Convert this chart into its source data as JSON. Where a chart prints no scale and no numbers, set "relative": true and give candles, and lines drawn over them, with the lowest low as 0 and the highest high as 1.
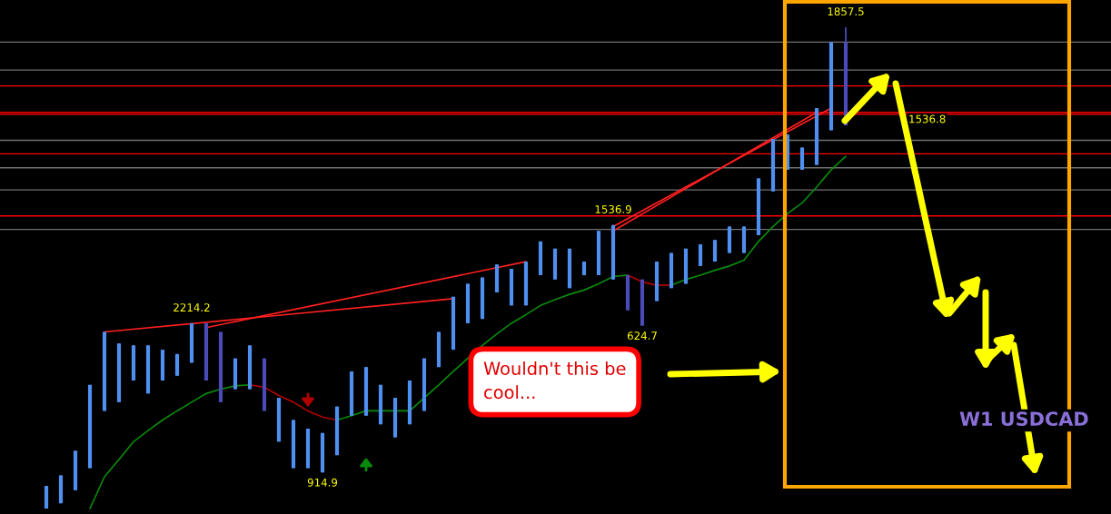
{
  "chart_data": {
    "type": "candlestick",
    "relative": true,
    "categories": [
      null,
      null,
      null,
      null,
      null,
      null,
      null,
      null,
      null,
      null,
      null,
      null,
      null,
      null,
      null,
      null,
      null,
      null,
      null,
      null,
      null,
      null,
      null,
      null,
      null,
      null,
      null,
      null,
      null,
      null,
      null,
      null,
      null,
      null,
      null,
      null,
      null,
      null,
      null,
      null,
      null,
      null,
      null,
      null,
      null,
      null,
      null,
      null,
      null,
      null,
      null,
      null,
      null,
      null,
      null,
      null
    ],
    "ohlc": [
      [
        0,
        0.047,
        0,
        0.047
      ],
      [
        0.011,
        0.069,
        0.011,
        0.069
      ],
      [
        0.038,
        0.12,
        0.038,
        0.12
      ],
      [
        0.084,
        0.257,
        0.084,
        0.257
      ],
      [
        0.203,
        0.367,
        0.203,
        0.367
      ],
      [
        0.221,
        0.343,
        0.221,
        0.343
      ],
      [
        0.266,
        0.339,
        0.266,
        0.339
      ],
      [
        0.239,
        0.339,
        0.239,
        0.339
      ],
      [
        0.266,
        0.33,
        0.266,
        0.33
      ],
      [
        0.276,
        0.321,
        0.276,
        0.321
      ],
      [
        0.303,
        0.385,
        0.303,
        0.385
      ],
      [
        0.385,
        0.385,
        0.266,
        0.266
      ],
      [
        0.367,
        0.367,
        0.221,
        0.221
      ],
      [
        0.248,
        0.312,
        0.248,
        0.312
      ],
      [
        0.248,
        0.339,
        0.248,
        0.339
      ],
      [
        0.312,
        0.312,
        0.203,
        0.203
      ],
      [
        0.139,
        0.23,
        0.139,
        0.23
      ],
      [
        0.084,
        0.184,
        0.084,
        0.184
      ],
      [
        0.084,
        0.166,
        0.084,
        0.166
      ],
      [
        0.075,
        0.157,
        0.075,
        0.157
      ],
      [
        0.111,
        0.212,
        0.111,
        0.212
      ],
      [
        0.193,
        0.285,
        0.193,
        0.285
      ],
      [
        0.193,
        0.294,
        0.193,
        0.294
      ],
      [
        0.175,
        0.257,
        0.175,
        0.257
      ],
      [
        0.148,
        0.23,
        0.148,
        0.23
      ],
      [
        0.175,
        0.266,
        0.175,
        0.266
      ],
      [
        0.203,
        0.312,
        0.203,
        0.312
      ],
      [
        0.294,
        0.367,
        0.294,
        0.367
      ],
      [
        0.33,
        0.44,
        0.33,
        0.44
      ],
      [
        0.385,
        0.467,
        0.385,
        0.467
      ],
      [
        0.394,
        0.48,
        0.394,
        0.48
      ],
      [
        0.449,
        0.507,
        0.449,
        0.507
      ],
      [
        0.422,
        0.498,
        0.422,
        0.498
      ],
      [
        0.422,
        0.513,
        0.422,
        0.513
      ],
      [
        0.485,
        0.555,
        0.485,
        0.555
      ],
      [
        0.476,
        0.54,
        0.476,
        0.54
      ],
      [
        0.458,
        0.54,
        0.458,
        0.54
      ],
      [
        0.485,
        0.513,
        0.485,
        0.513
      ],
      [
        0.485,
        0.577,
        0.485,
        0.577
      ],
      [
        0.476,
        0.589,
        0.476,
        0.589
      ],
      [
        0.485,
        0.485,
        0.412,
        0.412
      ],
      [
        0.476,
        0.476,
        0.38,
        0.38
      ],
      [
        0.431,
        0.513,
        0.431,
        0.513
      ],
      [
        0.458,
        0.531,
        0.458,
        0.531
      ],
      [
        0.467,
        0.54,
        0.467,
        0.54
      ],
      [
        0.504,
        0.549,
        0.504,
        0.549
      ],
      [
        0.513,
        0.558,
        0.513,
        0.558
      ],
      [
        0.531,
        0.586,
        0.531,
        0.586
      ],
      [
        0.531,
        0.586,
        0.531,
        0.586
      ],
      [
        0.568,
        0.686,
        0.568,
        0.686
      ],
      [
        0.659,
        0.768,
        0.659,
        0.768
      ],
      [
        0.704,
        0.777,
        0.704,
        0.777
      ],
      [
        0.704,
        0.75,
        0.704,
        0.75
      ],
      [
        0.714,
        0.832,
        0.714,
        0.832
      ],
      [
        0.786,
        0.969,
        0.786,
        0.969
      ],
      [
        0.969,
        1.0,
        0.796,
        0.796
      ]
    ],
    "colors": [
      "#4f8ff0",
      "#4f8ff0",
      "#4f8ff0",
      "#4f8ff0",
      "#4f8ff0",
      "#4f8ff0",
      "#4f8ff0",
      "#4f8ff0",
      "#4f8ff0",
      "#4f8ff0",
      "#4f8ff0",
      "#4a4ab8",
      "#4a4ab8",
      "#4f8ff0",
      "#4f8ff0",
      "#4a4ab8",
      "#4f8ff0",
      "#4f8ff0",
      "#4f8ff0",
      "#4f8ff0",
      "#4f8ff0",
      "#4f8ff0",
      "#4f8ff0",
      "#4f8ff0",
      "#4f8ff0",
      "#4f8ff0",
      "#4f8ff0",
      "#4f8ff0",
      "#4f8ff0",
      "#4f8ff0",
      "#4f8ff0",
      "#4f8ff0",
      "#4f8ff0",
      "#4f8ff0",
      "#4f8ff0",
      "#4f8ff0",
      "#4f8ff0",
      "#4f8ff0",
      "#4f8ff0",
      "#4f8ff0",
      "#4a4ab8",
      "#4a4ab8",
      "#4f8ff0",
      "#4f8ff0",
      "#4f8ff0",
      "#4f8ff0",
      "#4f8ff0",
      "#4f8ff0",
      "#4f8ff0",
      "#4f8ff0",
      "#4f8ff0",
      "#4f8ff0",
      "#4f8ff0",
      "#4f8ff0",
      "#4f8ff0",
      "#4a4ab8"
    ],
    "series": [
      {
        "type": "line",
        "color": "#0a8a0a",
        "values": [
          null,
          null,
          null,
          0.0,
          0.066,
          0.102,
          0.139,
          0.162,
          0.184,
          0.203,
          0.221,
          0.239,
          0.248,
          0.255,
          0.257,
          null,
          null,
          null,
          null,
          null,
          null,
          null,
          null,
          null,
          null,
          null,
          null,
          null,
          null,
          null,
          null,
          null,
          null,
          null,
          null,
          null,
          null,
          null,
          null,
          null,
          null,
          null,
          null,
          null,
          null,
          null,
          null,
          null,
          null,
          null,
          null,
          null,
          null,
          null,
          null,
          null
        ]
      },
      {
        "type": "line",
        "color": "#0a8a0a",
        "values": [
          null,
          null,
          null,
          null,
          null,
          null,
          null,
          null,
          null,
          null,
          null,
          null,
          null,
          null,
          null,
          null,
          null,
          null,
          null,
          null,
          0.184,
          0.193,
          0.203,
          0.203,
          0.203,
          0.203,
          0.23,
          0.257,
          0.285,
          0.312,
          0.339,
          0.363,
          0.385,
          0.403,
          0.422,
          0.434,
          0.445,
          0.454,
          0.467,
          0.482,
          0.485,
          null,
          null,
          null,
          null,
          null,
          null,
          null,
          null,
          null,
          null,
          null,
          null,
          null,
          null,
          null
        ]
      },
      {
        "type": "line",
        "color": "#0a8a0a",
        "values": [
          null,
          null,
          null,
          null,
          null,
          null,
          null,
          null,
          null,
          null,
          null,
          null,
          null,
          null,
          null,
          null,
          null,
          null,
          null,
          null,
          null,
          null,
          null,
          null,
          null,
          null,
          null,
          null,
          null,
          null,
          null,
          null,
          null,
          null,
          null,
          null,
          null,
          null,
          null,
          null,
          null,
          null,
          null,
          0.464,
          0.476,
          0.485,
          0.495,
          0.504,
          0.516,
          0.555,
          0.586,
          0.613,
          0.635,
          0.668,
          0.704,
          0.732
        ]
      },
      {
        "type": "line",
        "color": "#b00000",
        "values": [
          null,
          null,
          null,
          null,
          null,
          null,
          null,
          null,
          null,
          null,
          null,
          null,
          null,
          null,
          0.257,
          0.252,
          0.235,
          0.221,
          0.203,
          0.19,
          0.184,
          null,
          null,
          null,
          null,
          null,
          null,
          null,
          null,
          null,
          null,
          null,
          null,
          null,
          null,
          null,
          null,
          null,
          null,
          null,
          null,
          null,
          null,
          null,
          null,
          null,
          null,
          null,
          null,
          null,
          null,
          null,
          null,
          null,
          null,
          null
        ]
      },
      {
        "type": "line",
        "color": "#b00000",
        "values": [
          null,
          null,
          null,
          null,
          null,
          null,
          null,
          null,
          null,
          null,
          null,
          null,
          null,
          null,
          null,
          null,
          null,
          null,
          null,
          null,
          null,
          null,
          null,
          null,
          null,
          null,
          null,
          null,
          null,
          null,
          null,
          null,
          null,
          null,
          null,
          null,
          null,
          null,
          null,
          null,
          0.485,
          0.471,
          0.464,
          0.464,
          null,
          null,
          null,
          null,
          null,
          null,
          null,
          null,
          null,
          null,
          null,
          null
        ]
      },
      {
        "type": "line",
        "color": "#ff2020",
        "values": [
          null,
          null,
          null,
          null,
          0.367,
          null,
          null,
          null,
          null,
          null,
          null,
          null,
          null,
          null,
          null,
          null,
          null,
          null,
          null,
          null,
          null,
          null,
          null,
          null,
          null,
          null,
          null,
          null,
          0.436,
          null,
          null,
          null,
          null,
          null,
          null,
          null,
          null,
          null,
          null,
          null,
          null,
          null,
          null,
          null,
          null,
          null,
          null,
          null,
          null,
          null,
          null,
          null,
          null,
          null,
          null,
          null
        ]
      },
      {
        "type": "line",
        "color": "#ff2020",
        "values": [
          null,
          null,
          null,
          null,
          null,
          null,
          null,
          null,
          null,
          null,
          null,
          0.376,
          null,
          null,
          null,
          null,
          null,
          null,
          null,
          null,
          null,
          null,
          null,
          null,
          null,
          null,
          null,
          null,
          null,
          null,
          null,
          null,
          null,
          0.513,
          null,
          null,
          null,
          null,
          null,
          null,
          null,
          null,
          null,
          null,
          null,
          null,
          null,
          null,
          null,
          null,
          null,
          null,
          null,
          null,
          null,
          null
        ]
      },
      {
        "type": "line",
        "color": "#ff2020",
        "values": [
          null,
          null,
          null,
          null,
          null,
          null,
          null,
          null,
          null,
          null,
          null,
          null,
          null,
          null,
          null,
          null,
          null,
          null,
          null,
          null,
          null,
          null,
          null,
          null,
          null,
          null,
          null,
          null,
          null,
          null,
          null,
          null,
          null,
          null,
          null,
          null,
          null,
          null,
          null,
          0.577,
          null,
          null,
          null,
          null,
          null,
          null,
          null,
          null,
          null,
          null,
          null,
          null,
          null,
          0.823,
          null,
          null
        ]
      },
      {
        "type": "line",
        "color": "#ff2020",
        "values": [
          null,
          null,
          null,
          null,
          null,
          null,
          null,
          null,
          null,
          null,
          null,
          null,
          null,
          null,
          null,
          null,
          null,
          null,
          null,
          null,
          null,
          null,
          null,
          null,
          null,
          null,
          null,
          null,
          null,
          null,
          null,
          null,
          null,
          null,
          null,
          null,
          null,
          null,
          null,
          0.586,
          null,
          null,
          null,
          null,
          null,
          null,
          null,
          null,
          null,
          null,
          null,
          null,
          null,
          null,
          0.832,
          null
        ]
      }
    ],
    "ref_lines": [
      {
        "axis": "y",
        "value": 0.969,
        "color": "#707070"
      },
      {
        "axis": "y",
        "value": 0.911,
        "color": "#707070"
      },
      {
        "axis": "y",
        "value": 0.878,
        "color": "#ff0000"
      },
      {
        "axis": "y",
        "value": 0.823,
        "color": "#ff0000"
      },
      {
        "axis": "y",
        "value": 0.819,
        "color": "#ff0000"
      },
      {
        "axis": "y",
        "value": 0.765,
        "color": "#707070"
      },
      {
        "axis": "y",
        "value": 0.737,
        "color": "#ff0000"
      },
      {
        "axis": "y",
        "value": 0.708,
        "color": "#707070"
      },
      {
        "axis": "y",
        "value": 0.662,
        "color": "#707070"
      },
      {
        "axis": "y",
        "value": 0.608,
        "color": "#ff0000"
      },
      {
        "axis": "y",
        "value": 0.58,
        "color": "#707070"
      }
    ],
    "annotations": [
      {
        "text": "2214.2",
        "y": 0.385
      },
      {
        "text": "914.9",
        "y": 0.075
      },
      {
        "text": "1536.9",
        "y": 0.589
      },
      {
        "text": "624.7",
        "y": 0.38
      },
      {
        "text": "1857.5",
        "y": 1.0
      },
      "1536.8",
      "Wouldn't this be cool...",
      "W1 USDCAD"
    ]
  }
}
